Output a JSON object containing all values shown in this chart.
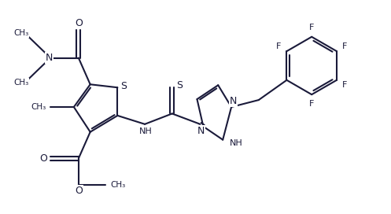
{
  "bg": "#ffffff",
  "lc": "#1a1a3a",
  "lw": 1.5,
  "fs": 8.0,
  "figsize": [
    4.97,
    2.72
  ],
  "dpi": 100,
  "xlim": [
    0,
    10
  ],
  "ylim": [
    0,
    5.44
  ]
}
